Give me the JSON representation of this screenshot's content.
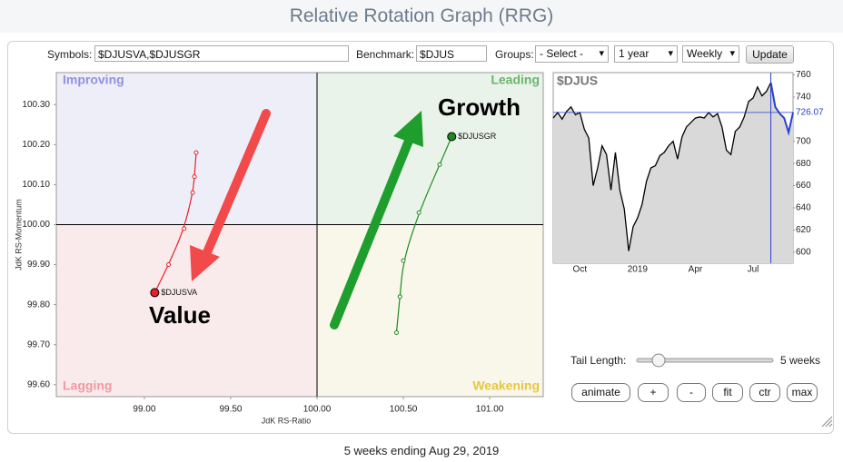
{
  "header": {
    "title": "Relative Rotation Graph (RRG)"
  },
  "controls": {
    "symbols_label": "Symbols:",
    "symbols": "$DJUSVA,$DJUSGR",
    "benchmark_label": "Benchmark:",
    "benchmark": "$DJUS",
    "groups_label": "Groups:",
    "groups": "- Select -",
    "period": "1 year",
    "frequency": "Weekly",
    "update": "Update"
  },
  "chart_data": [
    {
      "type": "rrg",
      "x_label": "JdK RS-Ratio",
      "y_label": "JdK RS-Momentum",
      "xlim": [
        98.49,
        101.31
      ],
      "ylim": [
        99.57,
        100.38
      ],
      "center": [
        100,
        100
      ],
      "xticks": [
        {
          "value": 99,
          "label": "99.00"
        },
        {
          "value": 99.5,
          "label": "99.50"
        },
        {
          "value": 100,
          "label": "100.00"
        },
        {
          "value": 100.5,
          "label": "100.50"
        },
        {
          "value": 101,
          "label": "101.00"
        }
      ],
      "yticks": [
        {
          "value": 99.6,
          "label": "99.60"
        },
        {
          "value": 99.7,
          "label": "99.70"
        },
        {
          "value": 99.8,
          "label": "99.80"
        },
        {
          "value": 99.9,
          "label": "99.90"
        },
        {
          "value": 100,
          "label": "100.00"
        },
        {
          "value": 100.1,
          "label": "100.10"
        },
        {
          "value": 100.2,
          "label": "100.20"
        },
        {
          "value": 100.3,
          "label": "100.30"
        }
      ],
      "quadrants": [
        {
          "label": "Improving",
          "color": "#8f92e0",
          "fill": "#eeeef9"
        },
        {
          "label": "Leading",
          "color": "#6cb46c",
          "fill": "#eaf3ea"
        },
        {
          "label": "Lagging",
          "color": "#f09aa0",
          "fill": "#f9eaec"
        },
        {
          "label": "Weakening",
          "color": "#e8c640",
          "fill": "#f8f7ea"
        }
      ],
      "series": [
        {
          "name": "$DJUSVA",
          "color": "#e8202a",
          "x": [
            99.3,
            99.29,
            99.28,
            99.23,
            99.14,
            99.06
          ],
          "values": [
            100.18,
            100.12,
            100.08,
            99.99,
            99.9,
            99.83
          ]
        },
        {
          "name": "$DJUSGR",
          "color": "#1f8a1f",
          "x": [
            100.46,
            100.48,
            100.5,
            100.59,
            100.71,
            100.78
          ],
          "values": [
            99.73,
            99.82,
            99.91,
            100.03,
            100.15,
            100.22
          ]
        }
      ],
      "annotations": [
        "Growth",
        "Value"
      ]
    },
    {
      "type": "line",
      "title": "$DJUS",
      "color": "#000000",
      "highlight_color": "#2a3fd0",
      "highlight_from": 49,
      "categories": [
        null,
        null,
        null,
        null,
        null,
        null,
        "Oct",
        null,
        null,
        null,
        null,
        null,
        null,
        null,
        null,
        null,
        null,
        null,
        null,
        "2019",
        null,
        null,
        null,
        null,
        null,
        null,
        null,
        null,
        null,
        null,
        null,
        null,
        "Apr",
        null,
        null,
        null,
        null,
        null,
        null,
        null,
        null,
        null,
        null,
        null,
        null,
        "Jul",
        null,
        null,
        null,
        null,
        null,
        null,
        null,
        null,
        null
      ],
      "values": [
        721,
        726,
        720,
        727,
        731,
        724,
        726,
        711,
        703,
        660,
        676,
        696,
        688,
        656,
        690,
        656,
        639,
        601,
        623,
        631,
        643,
        664,
        676,
        678,
        687,
        690,
        696,
        700,
        684,
        704,
        713,
        717,
        721,
        722,
        721,
        726,
        722,
        725,
        713,
        692,
        688,
        709,
        713,
        722,
        736,
        739,
        749,
        741,
        745,
        753,
        731,
        725,
        721,
        708,
        726.07
      ],
      "ylim": [
        590,
        762
      ],
      "yticks": [
        600,
        620,
        640,
        660,
        680,
        700,
        740,
        760
      ]
    }
  ],
  "tail": {
    "label": "Tail Length:",
    "value": "5 weeks"
  },
  "buttons": [
    "animate",
    "+",
    "-",
    "fit",
    "ctr",
    "max"
  ],
  "footer": "5 weeks ending Aug 29, 2019"
}
